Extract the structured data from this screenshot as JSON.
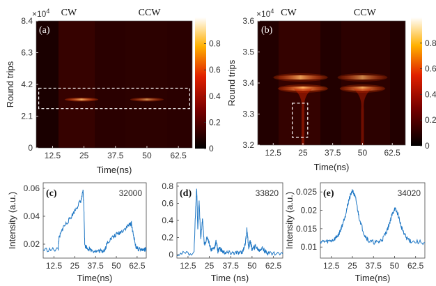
{
  "colors": {
    "line": "#1f77c4",
    "map_low": "#000000",
    "map_mid": "#d02000",
    "map_high": "#ffffff",
    "box": "#ffffff"
  },
  "chart_data": [
    {
      "panel": "(a)",
      "type": "heatmap",
      "xlabel": "Time(ns)",
      "ylabel": "Round trips",
      "y_exponent": "×10",
      "y_exponent_power": "4",
      "xticks": [
        "12.5",
        "25",
        "37.5",
        "50",
        "62.5"
      ],
      "yticks": [
        "0",
        "2.1",
        "4.2",
        "6.3",
        "8.4"
      ],
      "xlim": [
        6,
        68
      ],
      "ylim": [
        0,
        8.4
      ],
      "colorbar_ticks": [
        "0",
        "0.2",
        "0.4",
        "0.6",
        "0.8"
      ],
      "colorbar_range": [
        0,
        1
      ],
      "top_labels": [
        "CW",
        "CCW"
      ],
      "top_label_positions": [
        19,
        51
      ],
      "box_x": [
        7,
        67
      ],
      "box_y": [
        2.6,
        3.95
      ],
      "features": [
        {
          "kind": "pulse_trace",
          "x_range": [
            17,
            31
          ],
          "y": 3.2,
          "intensity": 0.9
        },
        {
          "kind": "pulse_trace",
          "x_range": [
            43,
            57
          ],
          "y": 3.2,
          "intensity": 0.7
        }
      ]
    },
    {
      "panel": "(b)",
      "type": "heatmap",
      "xlabel": "Time(ns)",
      "ylabel": "Round trips",
      "y_exponent": "×10",
      "y_exponent_power": "4",
      "xticks": [
        "12.5",
        "25",
        "37.5",
        "50",
        "62.5"
      ],
      "yticks": [
        "3.2",
        "3.3",
        "3.4",
        "3.5",
        "3.6"
      ],
      "xlim": [
        6,
        68
      ],
      "ylim": [
        3.2,
        3.6
      ],
      "colorbar_ticks": [
        "0",
        "0.2",
        "0.4",
        "0.6",
        "0.8"
      ],
      "colorbar_range": [
        0,
        1
      ],
      "top_labels": [
        "CW",
        "CCW"
      ],
      "top_label_positions": [
        19,
        51
      ],
      "box_x": [
        20.5,
        27
      ],
      "box_y": [
        3.225,
        3.335
      ],
      "features": [
        {
          "kind": "band",
          "x_range": [
            12,
            36
          ],
          "y": 3.418,
          "intensity": 0.85
        },
        {
          "kind": "band",
          "x_range": [
            14,
            36
          ],
          "y": 3.382,
          "intensity": 1.0
        },
        {
          "kind": "stem",
          "x": 25,
          "y_range": [
            3.2,
            3.382
          ],
          "intensity": 0.55
        },
        {
          "kind": "band",
          "x_range": [
            39,
            61
          ],
          "y": 3.418,
          "intensity": 0.7
        },
        {
          "kind": "band",
          "x_range": [
            40,
            60
          ],
          "y": 3.382,
          "intensity": 0.9
        },
        {
          "kind": "stem",
          "x": 50,
          "y_range": [
            3.2,
            3.382
          ],
          "intensity": 0.45
        }
      ]
    },
    {
      "panel": "(c)",
      "type": "line",
      "annotation": "32000",
      "xlabel": "Time(ns)",
      "ylabel": "Intensity (a.u.)",
      "xticks": [
        "12.5",
        "25",
        "37.5",
        "50",
        "62.5"
      ],
      "yticks": [
        "0.02",
        "0.04",
        "0.06"
      ],
      "xlim": [
        6,
        68
      ],
      "ylim": [
        0.01,
        0.064
      ],
      "series": [
        {
          "x": [
            6,
            15,
            15.5,
            18,
            22,
            26,
            29,
            30,
            30.5,
            31,
            34,
            38,
            41,
            43,
            45,
            49,
            53,
            57,
            59,
            60,
            62,
            66,
            68
          ],
          "y": [
            0.016,
            0.016,
            0.024,
            0.032,
            0.038,
            0.046,
            0.052,
            0.058,
            0.046,
            0.019,
            0.016,
            0.015,
            0.015,
            0.016,
            0.022,
            0.026,
            0.029,
            0.033,
            0.035,
            0.028,
            0.017,
            0.016,
            0.016
          ]
        }
      ]
    },
    {
      "panel": "(d)",
      "type": "line",
      "annotation": "33820",
      "xlabel": "Time (ns)",
      "ylabel": "",
      "xticks": [
        "12.5",
        "25",
        "37.5",
        "50",
        "62.5"
      ],
      "yticks": [
        "0",
        "0.2",
        "0.4",
        "0.6",
        "0.8"
      ],
      "xlim": [
        6,
        68
      ],
      "ylim": [
        -0.04,
        0.84
      ],
      "series": [
        {
          "x": [
            6,
            16,
            17,
            17.6,
            18.2,
            19,
            20,
            21,
            22,
            24,
            26,
            28,
            29,
            30,
            31,
            33,
            36,
            40,
            44,
            46,
            47,
            48,
            49,
            50,
            52,
            54,
            56,
            58,
            60,
            68
          ],
          "y": [
            0.01,
            0.02,
            0.55,
            0.78,
            0.3,
            0.62,
            0.18,
            0.42,
            0.12,
            0.2,
            0.06,
            0.08,
            0.16,
            0.04,
            0.08,
            0.03,
            0.02,
            0.02,
            0.02,
            0.12,
            0.3,
            0.08,
            0.16,
            0.06,
            0.1,
            0.05,
            0.08,
            0.03,
            0.02,
            0.01
          ]
        }
      ]
    },
    {
      "panel": "(e)",
      "type": "line",
      "annotation": "34020",
      "xlabel": "Time(ns)",
      "ylabel": "Intensity (a.u.)",
      "xticks": [
        "12.5",
        "25",
        "37.5",
        "50",
        "62.5"
      ],
      "yticks": [
        "0.01",
        "0.015",
        "0.02",
        "0.025"
      ],
      "xlim": [
        6,
        68
      ],
      "ylim": [
        0.007,
        0.0275
      ],
      "series": [
        {
          "x": [
            6,
            10,
            14,
            17,
            19,
            21,
            23,
            25,
            27,
            29,
            32,
            35,
            40,
            43,
            46,
            48,
            50,
            52,
            54,
            57,
            60,
            68
          ],
          "y": [
            0.0115,
            0.0115,
            0.012,
            0.0135,
            0.016,
            0.019,
            0.023,
            0.0255,
            0.023,
            0.018,
            0.0135,
            0.0115,
            0.0112,
            0.0122,
            0.015,
            0.018,
            0.0205,
            0.019,
            0.0155,
            0.0125,
            0.0115,
            0.0112
          ]
        }
      ]
    }
  ]
}
